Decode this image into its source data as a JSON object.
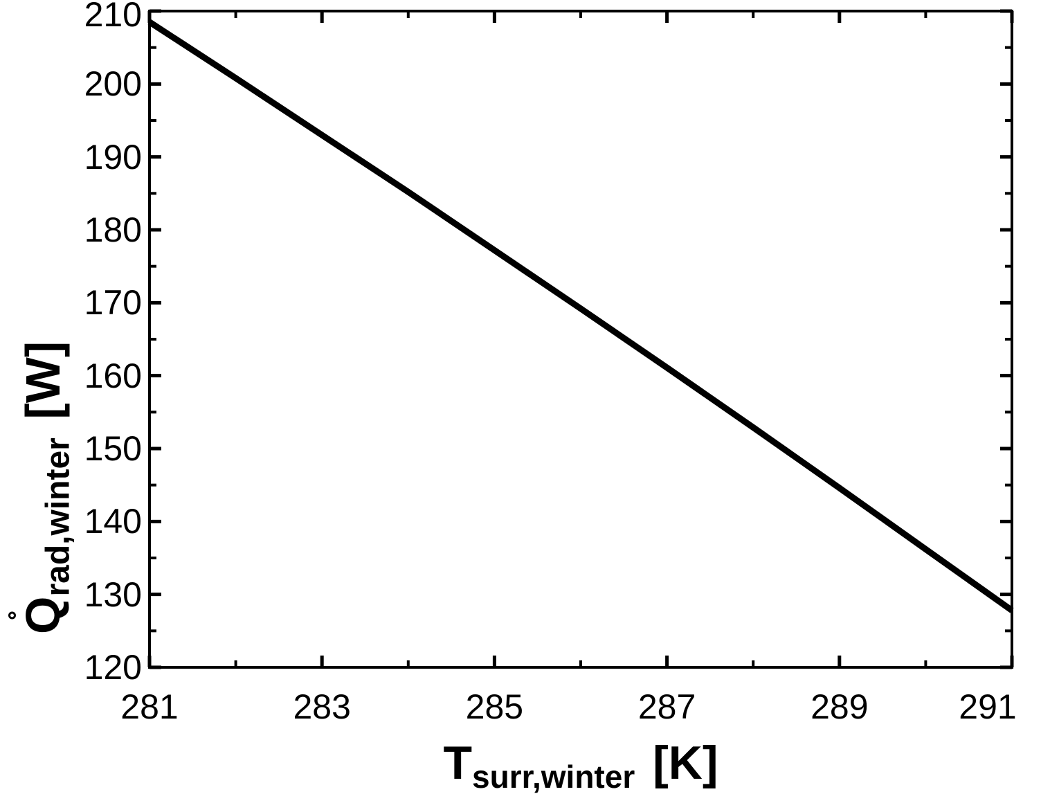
{
  "figure": {
    "background_color": "#ffffff",
    "foreground_color": "#000000"
  },
  "chart_data": {
    "type": "line",
    "title": "",
    "xlabel": "T_surr,winter [K]",
    "ylabel": "Qdot_rad,winter [W]",
    "xlabel_parts": {
      "symbol": "T",
      "subscript": "surr,winter",
      "unit": "[K]"
    },
    "ylabel_parts": {
      "symbol": "Q",
      "overdot": true,
      "subscript": "rad,winter",
      "unit": "[W]"
    },
    "xlim": [
      281,
      291
    ],
    "ylim": [
      120,
      210
    ],
    "x_major_ticks": [
      281,
      283,
      285,
      287,
      289,
      291
    ],
    "x_minor_ticks": [
      282,
      284,
      286,
      288,
      290
    ],
    "y_major_ticks": [
      120,
      130,
      140,
      150,
      160,
      170,
      180,
      190,
      200,
      210
    ],
    "y_minor_ticks": [
      125,
      135,
      145,
      155,
      165,
      175,
      185,
      195,
      205
    ],
    "grid": false,
    "legend": false,
    "line_color": "#000000",
    "line_width": 9,
    "x": [
      281,
      282,
      283,
      284,
      285,
      286,
      287,
      288,
      289,
      290,
      291
    ],
    "series": [
      {
        "name": "Q_rad,winter",
        "values": [
          208.5,
          200.8,
          193.0,
          185.2,
          177.2,
          169.2,
          161.1,
          152.9,
          144.6,
          136.2,
          127.8
        ]
      }
    ]
  }
}
